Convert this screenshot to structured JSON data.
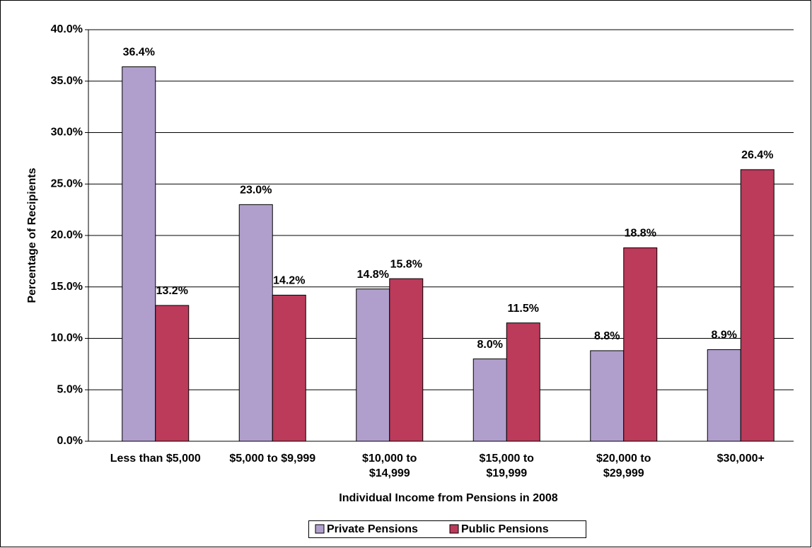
{
  "chart_data": {
    "type": "bar",
    "x_label": "Individual Income from Pensions in 2008",
    "y_label": "Percentage of Recipients",
    "categories": [
      "Less than $5,000",
      "$5,000 to  $9,999",
      "$10,000 to\n$14,999",
      "$15,000 to\n$19,999",
      "$20,000 to\n$29,999",
      "$30,000+"
    ],
    "series": [
      {
        "name": "Private Pensions",
        "color": "#b09fcc",
        "values": [
          36.4,
          23.0,
          14.8,
          8.0,
          8.8,
          8.9
        ],
        "value_labels": [
          "36.4%",
          "23.0%",
          "14.8%",
          "8.0%",
          "8.8%",
          "8.9%"
        ]
      },
      {
        "name": "Public Pensions",
        "color": "#bc3a5a",
        "values": [
          13.2,
          14.2,
          15.8,
          11.5,
          18.8,
          26.4
        ],
        "value_labels": [
          "13.2%",
          "14.2%",
          "15.8%",
          "11.5%",
          "18.8%",
          "26.4%"
        ]
      }
    ],
    "ylim": [
      0,
      40
    ],
    "yticks": [
      {
        "value": 0,
        "label": "0.0%"
      },
      {
        "value": 5,
        "label": "5.0%"
      },
      {
        "value": 10,
        "label": "10.0%"
      },
      {
        "value": 15,
        "label": "15.0%"
      },
      {
        "value": 20,
        "label": "20.0%"
      },
      {
        "value": 25,
        "label": "25.0%"
      },
      {
        "value": 30,
        "label": "30.0%"
      },
      {
        "value": 35,
        "label": "35.0%"
      },
      {
        "value": 40,
        "label": "40.0%"
      }
    ],
    "grid": true,
    "legend": "bottom"
  }
}
